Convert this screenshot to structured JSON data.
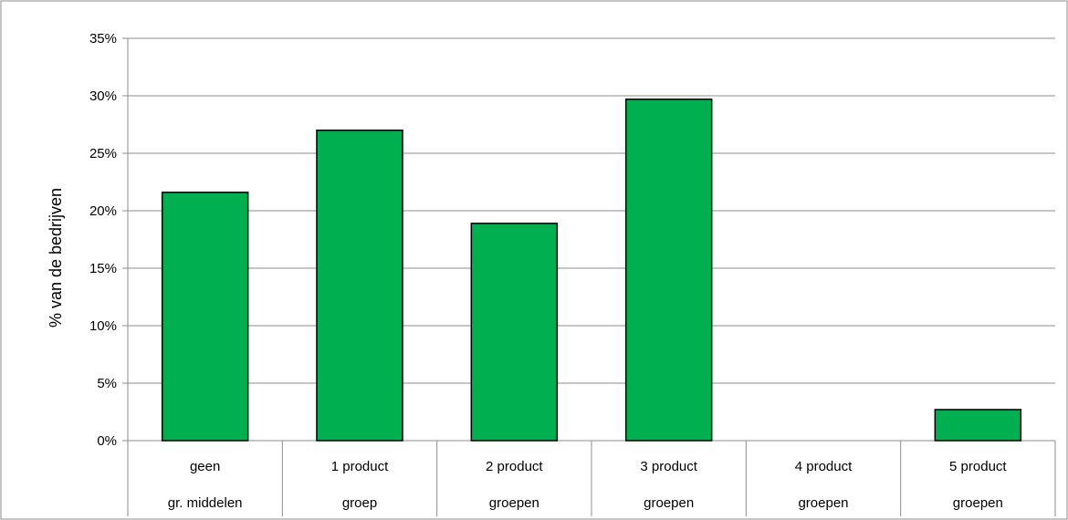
{
  "chart_data": {
    "type": "bar",
    "ylabel": "% van de bedrijven",
    "xlabel": "",
    "ylim": [
      0,
      35
    ],
    "yticks": [
      "0%",
      "5%",
      "10%",
      "15%",
      "20%",
      "25%",
      "30%",
      "35%"
    ],
    "grid": true,
    "legend": "none",
    "bar_color": "#00b050",
    "categories": [
      {
        "line1": "geen",
        "line2": "gr. middelen"
      },
      {
        "line1": "1 product",
        "line2": "groep"
      },
      {
        "line1": "2 product",
        "line2": "groepen"
      },
      {
        "line1": "3 product",
        "line2": "groepen"
      },
      {
        "line1": "4 product",
        "line2": "groepen"
      },
      {
        "line1": "5 product",
        "line2": "groepen"
      }
    ],
    "values": [
      21.6,
      27.0,
      18.9,
      29.7,
      0,
      2.7
    ]
  }
}
